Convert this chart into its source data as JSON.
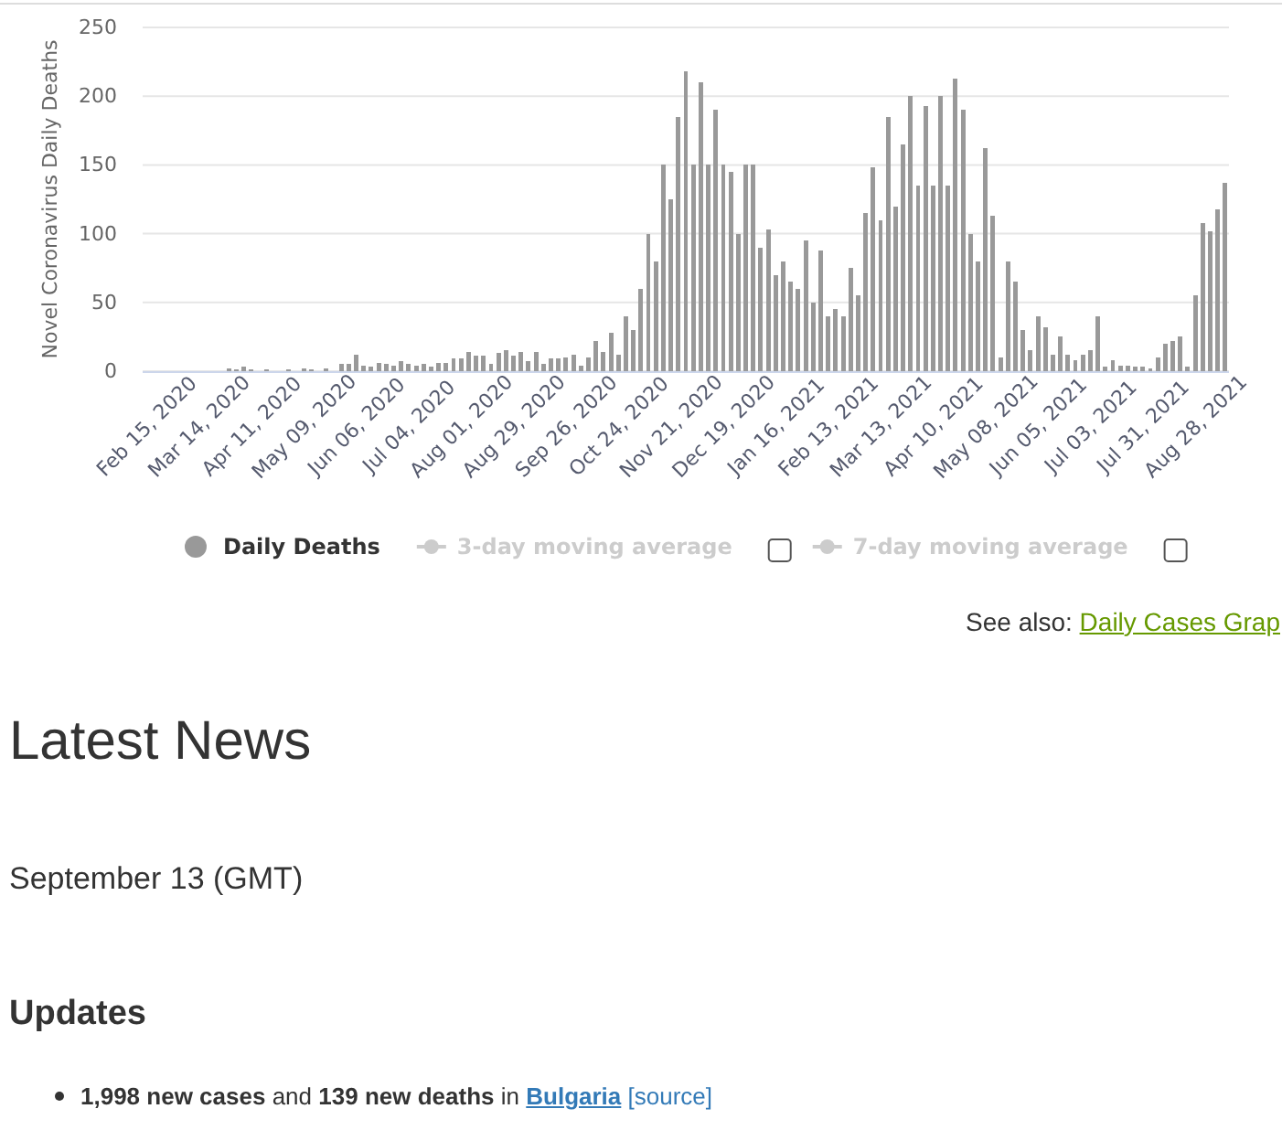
{
  "chart_data": {
    "type": "bar",
    "ylabel": "Novel Coronavirus Daily Deaths",
    "categories": [
      "Feb 15, 2020",
      null,
      null,
      null,
      null,
      null,
      null,
      "Mar 14, 2020",
      null,
      null,
      null,
      null,
      null,
      null,
      "Apr 11, 2020",
      null,
      null,
      null,
      null,
      null,
      null,
      "May 09, 2020",
      null,
      null,
      null,
      null,
      null,
      null,
      "Jun 06, 2020",
      null,
      null,
      null,
      null,
      null,
      null,
      "Jul 04, 2020",
      null,
      null,
      null,
      null,
      null,
      null,
      "Aug 01, 2020",
      null,
      null,
      null,
      null,
      null,
      null,
      "Aug 29, 2020",
      null,
      null,
      null,
      null,
      null,
      null,
      "Sep 26, 2020",
      null,
      null,
      null,
      null,
      null,
      null,
      "Oct 24, 2020",
      null,
      null,
      null,
      null,
      null,
      null,
      "Nov 21, 2020",
      null,
      null,
      null,
      null,
      null,
      null,
      "Dec 19, 2020",
      null,
      null,
      null,
      null,
      null,
      null,
      "Jan 16, 2021",
      null,
      null,
      null,
      null,
      null,
      null,
      "Feb 13, 2021",
      null,
      null,
      null,
      null,
      null,
      null,
      "Mar 13, 2021",
      null,
      null,
      null,
      null,
      null,
      null,
      "Apr 10, 2021",
      null,
      null,
      null,
      null,
      null,
      null,
      "May 08, 2021",
      null,
      null,
      null,
      null,
      null,
      null,
      "Jun 05, 2021",
      null,
      null,
      null,
      null,
      null,
      null,
      "Jul 03, 2021",
      null,
      null,
      null,
      null,
      null,
      null,
      "Jul 31, 2021",
      null,
      null,
      null,
      null,
      null,
      null,
      "Aug 28, 2021",
      null,
      null,
      null,
      null
    ],
    "series": [
      {
        "name": "Daily Deaths",
        "color": "#999999",
        "values": [
          0,
          0,
          0,
          0,
          0,
          0,
          0,
          0,
          0,
          0,
          0,
          2,
          1,
          3,
          1,
          0,
          1,
          0,
          0,
          1,
          0,
          2,
          1,
          0,
          2,
          0,
          5,
          5,
          12,
          4,
          3,
          6,
          5,
          4,
          7,
          5,
          4,
          5,
          3,
          6,
          6,
          9,
          9,
          14,
          11,
          11,
          5,
          13,
          15,
          11,
          14,
          7,
          14,
          5,
          9,
          9,
          10,
          12,
          4,
          10,
          22,
          14,
          28,
          12,
          40,
          30,
          60,
          100,
          80,
          150,
          125,
          185,
          218,
          150,
          210,
          150,
          190,
          150,
          145,
          100,
          150,
          150,
          90,
          103,
          70,
          80,
          65,
          60,
          95,
          50,
          88,
          40,
          45,
          40,
          75,
          55,
          115,
          148,
          110,
          185,
          120,
          165,
          200,
          135,
          193,
          135,
          200,
          135,
          213,
          190,
          100,
          80,
          162,
          113,
          10,
          80,
          65,
          30,
          15,
          40,
          32,
          12,
          25,
          12,
          8,
          12,
          15,
          40,
          3,
          8,
          4,
          4,
          3,
          3,
          2,
          10,
          20,
          22,
          25,
          3,
          55,
          108,
          102,
          118,
          137
        ]
      }
    ],
    "ylim": [
      0,
      250
    ],
    "yticks": [
      0,
      50,
      100,
      150,
      200,
      250
    ],
    "grid": "y",
    "legend": "bottom",
    "annotations": [
      "3-day moving average",
      "7-day moving average",
      "See also:",
      "Daily Cases Grap",
      "Latest News",
      "September 13 (GMT)",
      "Updates",
      "1,998 new cases",
      "and",
      "139 new deaths",
      "in",
      "Bulgaria",
      "[source]"
    ]
  }
}
